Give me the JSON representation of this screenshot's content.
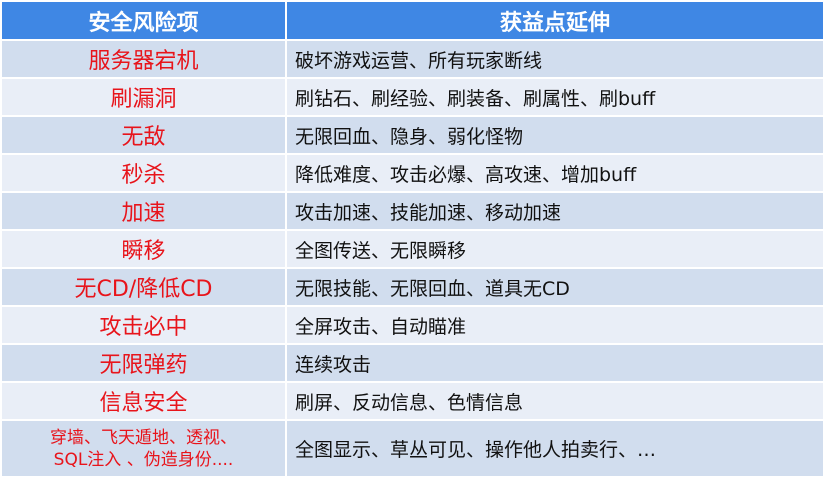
{
  "table": {
    "headers": [
      "安全风险项",
      "获益点延伸"
    ],
    "rows": [
      {
        "risk": "服务器宕机",
        "gain": "破坏游戏运营、所有玩家断线"
      },
      {
        "risk": "刷漏洞",
        "gain": "刷钻石、刷经验、刷装备、刷属性、刷buff"
      },
      {
        "risk": "无敌",
        "gain": "无限回血、隐身、弱化怪物"
      },
      {
        "risk": "秒杀",
        "gain": "降低难度、攻击必爆、高攻速、增加buff"
      },
      {
        "risk": "加速",
        "gain": "攻击加速、技能加速、移动加速"
      },
      {
        "risk": "瞬移",
        "gain": "全图传送、无限瞬移"
      },
      {
        "risk": "无CD/降低CD",
        "gain": "无限技能、无限回血、道具无CD"
      },
      {
        "risk": "攻击必中",
        "gain": "全屏攻击、自动瞄准"
      },
      {
        "risk": "无限弹药",
        "gain": "连续攻击"
      },
      {
        "risk": "信息安全",
        "gain": "刷屏、反动信息、色情信息"
      },
      {
        "risk": "穿墙、飞天遁地、透视、",
        "risk_line2": "SQL注入 、伪造身份....",
        "gain": "全图显示、草丛可见、操作他人拍卖行、…"
      }
    ]
  },
  "colors": {
    "header": "#3f87e4",
    "risk_text": "#e8141b",
    "row_dark": "#d1ddee",
    "row_light": "#e9eef7"
  }
}
